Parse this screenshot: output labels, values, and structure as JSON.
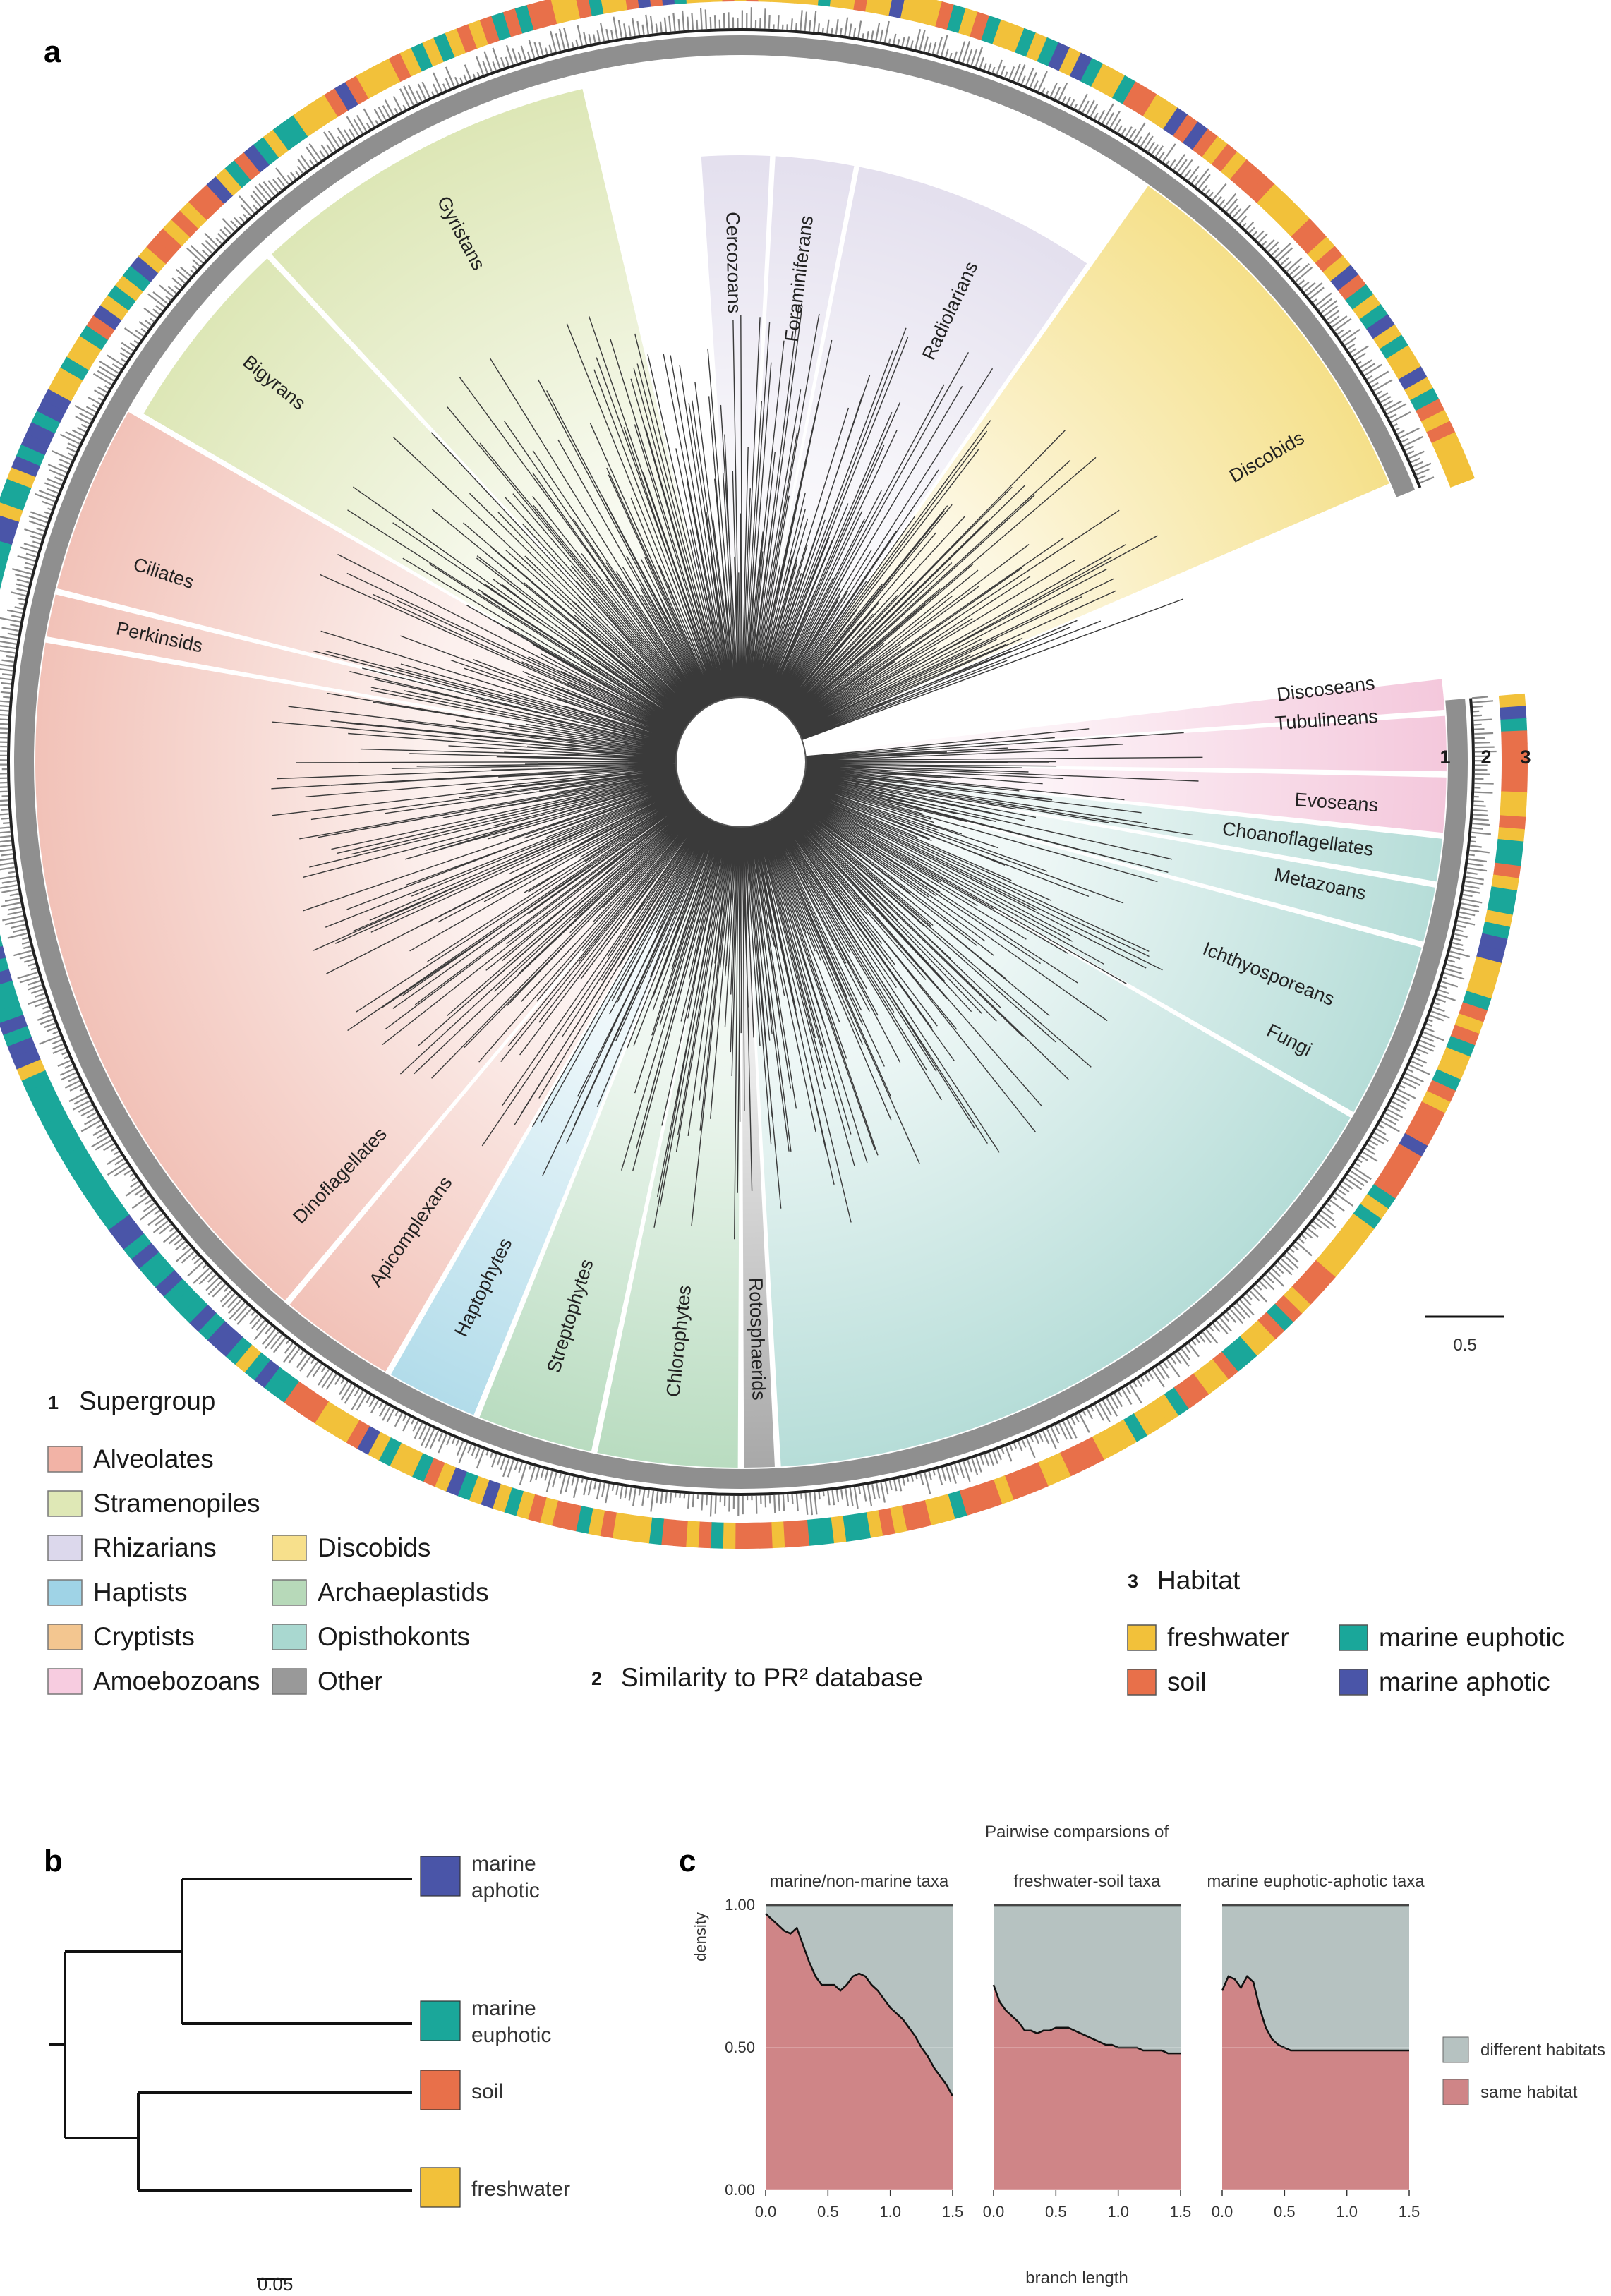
{
  "panels": {
    "a": "a",
    "b": "b",
    "c": "c"
  },
  "ring_labels": [
    "1",
    "2",
    "3"
  ],
  "scale_a": "0.5",
  "scale_b": "0.05",
  "clades": [
    {
      "label": "Gyristans",
      "color": "#dce6b4"
    },
    {
      "label": "Bigyrans",
      "color": "#dce6b4"
    },
    {
      "label": "Cercozoans",
      "color": "#ddd8ea"
    },
    {
      "label": "Foraminiferans",
      "color": "#ddd8ea"
    },
    {
      "label": "Radiolarians",
      "color": "#ddd8ea"
    },
    {
      "label": "Discobids",
      "color": "#f5e08a"
    },
    {
      "label": "Ciliates",
      "color": "#f2c2b8"
    },
    {
      "label": "Perkinsids",
      "color": "#f2c2b8"
    },
    {
      "label": "Dinoflagellates",
      "color": "#f2c2b8"
    },
    {
      "label": "Apicomplexans",
      "color": "#f2c2b8"
    },
    {
      "label": "Haptophytes",
      "color": "#b2dcea"
    },
    {
      "label": "Streptophytes",
      "color": "#b9dcc0"
    },
    {
      "label": "Chlorophytes",
      "color": "#b9dcc0"
    },
    {
      "label": "Rotosphaerids",
      "color": "#a8a8a8"
    },
    {
      "label": "Fungi",
      "color": "#b6ddd8"
    },
    {
      "label": "Ichthyosporeans",
      "color": "#b6ddd8"
    },
    {
      "label": "Metazoans",
      "color": "#b6ddd8"
    },
    {
      "label": "Choanoflagellates",
      "color": "#b6ddd8"
    },
    {
      "label": "Evoseans",
      "color": "#f4c8dc"
    },
    {
      "label": "Tubulineans",
      "color": "#f4c8dc"
    },
    {
      "label": "Discoseans",
      "color": "#f4c8dc"
    }
  ],
  "legend_supergroup": {
    "num": "1",
    "title": "Supergroup",
    "items": [
      {
        "label": "Alveolates",
        "color": "#f2b3a6"
      },
      {
        "label": "Stramenopiles",
        "color": "#dfe8b6"
      },
      {
        "label": "Rhizarians",
        "color": "#dcd8ec"
      },
      {
        "label": "Haptists",
        "color": "#9fd3e6"
      },
      {
        "label": "Cryptists",
        "color": "#f3c690"
      },
      {
        "label": "Amoebozoans",
        "color": "#f7cce0"
      },
      {
        "label": "Discobids",
        "color": "#f7e08c"
      },
      {
        "label": "Archaeplastids",
        "color": "#b7d9b9"
      },
      {
        "label": "Opisthokonts",
        "color": "#a9d8d0"
      },
      {
        "label": "Other",
        "color": "#999999"
      }
    ]
  },
  "legend_similarity": {
    "num": "2",
    "title": "Similarity to PR² database"
  },
  "legend_habitat": {
    "num": "3",
    "title": "Habitat",
    "items": [
      {
        "label": "freshwater",
        "color": "#f2c13a"
      },
      {
        "label": "soil",
        "color": "#e8704a"
      },
      {
        "label": "marine euphotic",
        "color": "#1aa79a"
      },
      {
        "label": "marine aphotic",
        "color": "#4a55a8"
      }
    ]
  },
  "panel_b": {
    "leaves": [
      {
        "label": "marine aphotic",
        "color": "#4a55a8"
      },
      {
        "label": "marine euphotic",
        "color": "#1aa79a"
      },
      {
        "label": "soil",
        "color": "#e8704a"
      },
      {
        "label": "freshwater",
        "color": "#f2c13a"
      }
    ]
  },
  "chart_data": {
    "type": "area",
    "title": "Pairwise comparsions of",
    "xlabel": "branch length",
    "ylabel": "density",
    "xlim": [
      0,
      1.5
    ],
    "ylim": [
      0,
      1
    ],
    "x_ticks": [
      "0.0",
      "0.5",
      "1.0",
      "1.5"
    ],
    "y_ticks": [
      "0.00",
      "0.50",
      "1.00"
    ],
    "legend": [
      {
        "name": "different habitats",
        "color": "#b6c2c1"
      },
      {
        "name": "same habitat",
        "color": "#cf8587"
      }
    ],
    "facets": [
      {
        "name": "marine/non-marine taxa",
        "x": [
          0.0,
          0.05,
          0.1,
          0.15,
          0.2,
          0.25,
          0.3,
          0.35,
          0.4,
          0.45,
          0.5,
          0.55,
          0.6,
          0.65,
          0.7,
          0.75,
          0.8,
          0.85,
          0.9,
          0.95,
          1.0,
          1.05,
          1.1,
          1.15,
          1.2,
          1.25,
          1.3,
          1.35,
          1.4,
          1.45,
          1.5
        ],
        "same_habitat": [
          0.97,
          0.95,
          0.93,
          0.91,
          0.9,
          0.92,
          0.86,
          0.8,
          0.75,
          0.72,
          0.72,
          0.72,
          0.7,
          0.72,
          0.75,
          0.76,
          0.75,
          0.72,
          0.7,
          0.67,
          0.64,
          0.62,
          0.6,
          0.57,
          0.54,
          0.5,
          0.47,
          0.43,
          0.4,
          0.37,
          0.33
        ]
      },
      {
        "name": "freshwater-soil taxa",
        "x": [
          0.0,
          0.05,
          0.1,
          0.15,
          0.2,
          0.25,
          0.3,
          0.35,
          0.4,
          0.45,
          0.5,
          0.55,
          0.6,
          0.65,
          0.7,
          0.75,
          0.8,
          0.85,
          0.9,
          0.95,
          1.0,
          1.05,
          1.1,
          1.15,
          1.2,
          1.25,
          1.3,
          1.35,
          1.4,
          1.45,
          1.5
        ],
        "same_habitat": [
          0.72,
          0.66,
          0.63,
          0.61,
          0.59,
          0.56,
          0.56,
          0.55,
          0.56,
          0.56,
          0.57,
          0.57,
          0.57,
          0.56,
          0.55,
          0.54,
          0.53,
          0.52,
          0.51,
          0.51,
          0.5,
          0.5,
          0.5,
          0.5,
          0.49,
          0.49,
          0.49,
          0.49,
          0.48,
          0.48,
          0.48
        ]
      },
      {
        "name": "marine euphotic-aphotic taxa",
        "x": [
          0.0,
          0.05,
          0.1,
          0.15,
          0.2,
          0.25,
          0.3,
          0.35,
          0.4,
          0.45,
          0.5,
          0.55,
          0.6,
          0.65,
          0.7,
          0.75,
          0.8,
          0.85,
          0.9,
          0.95,
          1.0,
          1.05,
          1.1,
          1.15,
          1.2,
          1.25,
          1.3,
          1.35,
          1.4,
          1.45,
          1.5
        ],
        "same_habitat": [
          0.7,
          0.75,
          0.74,
          0.71,
          0.75,
          0.73,
          0.64,
          0.57,
          0.53,
          0.51,
          0.5,
          0.49,
          0.49,
          0.49,
          0.49,
          0.49,
          0.49,
          0.49,
          0.49,
          0.49,
          0.49,
          0.49,
          0.49,
          0.49,
          0.49,
          0.49,
          0.49,
          0.49,
          0.49,
          0.49,
          0.49
        ]
      }
    ]
  }
}
